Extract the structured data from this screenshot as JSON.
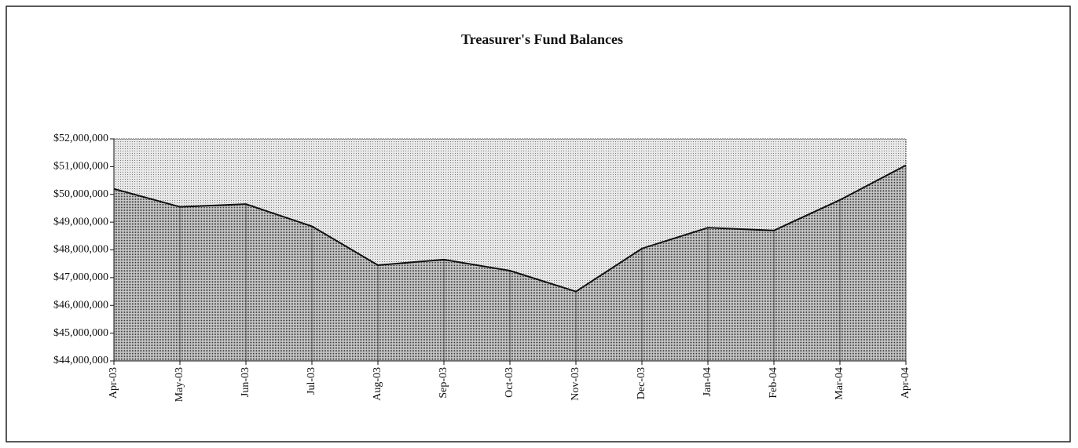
{
  "chart_data": {
    "type": "area",
    "title": "Treasurer's Fund Balances",
    "categories": [
      "Apr-03",
      "May-03",
      "Jun-03",
      "Jul-03",
      "Aug-03",
      "Sep-03",
      "Oct-03",
      "Nov-03",
      "Dec-03",
      "Jan-04",
      "Feb-04",
      "Mar-04",
      "Apr-04"
    ],
    "values": [
      50200000,
      49550000,
      49650000,
      48850000,
      47450000,
      47650000,
      47250000,
      46500000,
      48050000,
      48800000,
      48700000,
      49800000,
      51050000
    ],
    "color": "#8a8a8a",
    "ylim": [
      44000000,
      52000000
    ],
    "yticks": [
      {
        "value": 44000000,
        "label": "$44,000,000"
      },
      {
        "value": 45000000,
        "label": "$45,000,000"
      },
      {
        "value": 46000000,
        "label": "$46,000,000"
      },
      {
        "value": 47000000,
        "label": "$47,000,000"
      },
      {
        "value": 48000000,
        "label": "$48,000,000"
      },
      {
        "value": 49000000,
        "label": "$49,000,000"
      },
      {
        "value": 50000000,
        "label": "$50,000,000"
      },
      {
        "value": 51000000,
        "label": "$51,000,000"
      },
      {
        "value": 52000000,
        "label": "$52,000,000"
      }
    ],
    "grid": false
  }
}
